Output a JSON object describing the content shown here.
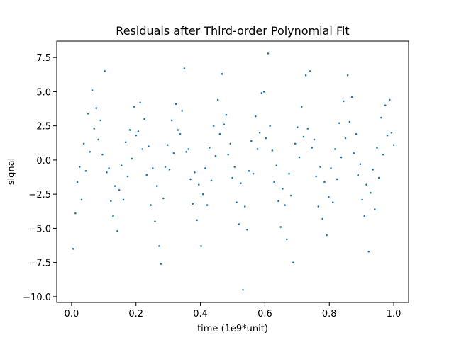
{
  "chart_data": {
    "type": "scatter",
    "title": "Residuals after Third-order Polynomial Fit",
    "xlabel": "time (1e9*unit)",
    "ylabel": "signal",
    "color": "#1f77b4",
    "xlim": [
      -0.046,
      1.046
    ],
    "ylim": [
      -10.42,
      8.7
    ],
    "xticks": [
      {
        "value": 0,
        "label": "0.0"
      },
      0.2,
      0.4,
      0.6,
      0.8,
      {
        "value": 1,
        "label": "1.0"
      }
    ],
    "yticks": [
      {
        "value": -10,
        "label": "−10.0"
      },
      {
        "value": -7.5,
        "label": "−7.5"
      },
      {
        "value": -5,
        "label": "−5.0"
      },
      {
        "value": -2.5,
        "label": "−2.5"
      },
      {
        "value": 0,
        "label": "0.0"
      },
      2.5,
      {
        "value": 5,
        "label": "5.0"
      },
      7.5
    ],
    "x": [
      0.005,
      0.012,
      0.018,
      0.025,
      0.031,
      0.038,
      0.044,
      0.051,
      0.057,
      0.064,
      0.07,
      0.077,
      0.083,
      0.09,
      0.096,
      0.103,
      0.109,
      0.116,
      0.122,
      0.129,
      0.135,
      0.142,
      0.148,
      0.155,
      0.161,
      0.168,
      0.174,
      0.181,
      0.187,
      0.194,
      0.2,
      0.207,
      0.213,
      0.22,
      0.226,
      0.233,
      0.239,
      0.246,
      0.252,
      0.259,
      0.265,
      0.272,
      0.277,
      0.285,
      0.291,
      0.298,
      0.304,
      0.311,
      0.317,
      0.324,
      0.33,
      0.337,
      0.343,
      0.35,
      0.356,
      0.363,
      0.369,
      0.376,
      0.382,
      0.389,
      0.395,
      0.402,
      0.408,
      0.415,
      0.421,
      0.428,
      0.434,
      0.441,
      0.447,
      0.454,
      0.46,
      0.467,
      0.473,
      0.48,
      0.486,
      0.493,
      0.499,
      0.506,
      0.512,
      0.519,
      0.525,
      0.532,
      0.538,
      0.545,
      0.551,
      0.558,
      0.564,
      0.571,
      0.577,
      0.584,
      0.59,
      0.597,
      0.603,
      0.61,
      0.616,
      0.623,
      0.629,
      0.636,
      0.642,
      0.649,
      0.655,
      0.662,
      0.668,
      0.675,
      0.681,
      0.688,
      0.694,
      0.701,
      0.707,
      0.714,
      0.72,
      0.727,
      0.733,
      0.74,
      0.746,
      0.753,
      0.759,
      0.766,
      0.772,
      0.779,
      0.785,
      0.792,
      0.798,
      0.805,
      0.811,
      0.818,
      0.824,
      0.831,
      0.837,
      0.844,
      0.85,
      0.857,
      0.863,
      0.87,
      0.876,
      0.883,
      0.889,
      0.896,
      0.902,
      0.909,
      0.915,
      0.922,
      0.928,
      0.935,
      0.941,
      0.948,
      0.954,
      0.961,
      0.967,
      0.974,
      0.98,
      0.987,
      0.993,
      1.0
    ],
    "values": [
      -6.5,
      -3.9,
      -1.6,
      -0.5,
      -2.9,
      1.2,
      -0.8,
      3.4,
      0.6,
      5.1,
      2.3,
      3.8,
      1.5,
      2.9,
      0.4,
      6.5,
      -0.9,
      -0.6,
      -3.0,
      -4.1,
      -1.9,
      -5.2,
      -2.2,
      -0.4,
      -2.9,
      1.3,
      -1.2,
      2.2,
      0.1,
      3.9,
      1.8,
      2.1,
      4.2,
      0.8,
      3.0,
      -1.1,
      1.0,
      -3.3,
      -0.6,
      -4.5,
      -1.9,
      -6.3,
      -7.6,
      -2.8,
      -0.5,
      1.1,
      -0.7,
      2.9,
      0.5,
      4.1,
      2.2,
      1.9,
      3.6,
      6.7,
      0.6,
      0.8,
      -1.4,
      -3.2,
      -0.9,
      -4.4,
      -1.8,
      -6.3,
      -2.5,
      -0.6,
      -3.3,
      0.9,
      -1.5,
      2.5,
      0.3,
      4.4,
      1.9,
      6.3,
      2.6,
      3.3,
      0.4,
      1.2,
      -1.3,
      -0.5,
      -3.1,
      -4.7,
      -1.7,
      -9.5,
      -3.4,
      -5.1,
      -0.8,
      1.4,
      -1.0,
      3.2,
      0.8,
      2.0,
      4.9,
      5.0,
      1.6,
      7.8,
      2.5,
      0.7,
      -1.6,
      -0.4,
      -3.0,
      -4.9,
      -2.1,
      -3.3,
      -5.8,
      -1.0,
      -2.6,
      -7.5,
      1.2,
      2.4,
      0.2,
      3.9,
      1.7,
      6.2,
      2.3,
      6.5,
      0.9,
      1.5,
      -1.2,
      -3.4,
      -0.5,
      -4.3,
      -1.6,
      -5.5,
      -2.7,
      -0.6,
      -3.1,
      0.8,
      -1.4,
      2.7,
      0.2,
      4.3,
      1.6,
      6.2,
      2.8,
      4.6,
      0.5,
      1.9,
      -1.1,
      -0.3,
      -2.9,
      -4.1,
      -1.8,
      -6.7,
      -2.4,
      -0.7,
      -3.6,
      0.9,
      -1.3,
      3.1,
      0.4,
      4.0,
      1.8,
      4.4,
      2.0,
      1.1
    ]
  }
}
